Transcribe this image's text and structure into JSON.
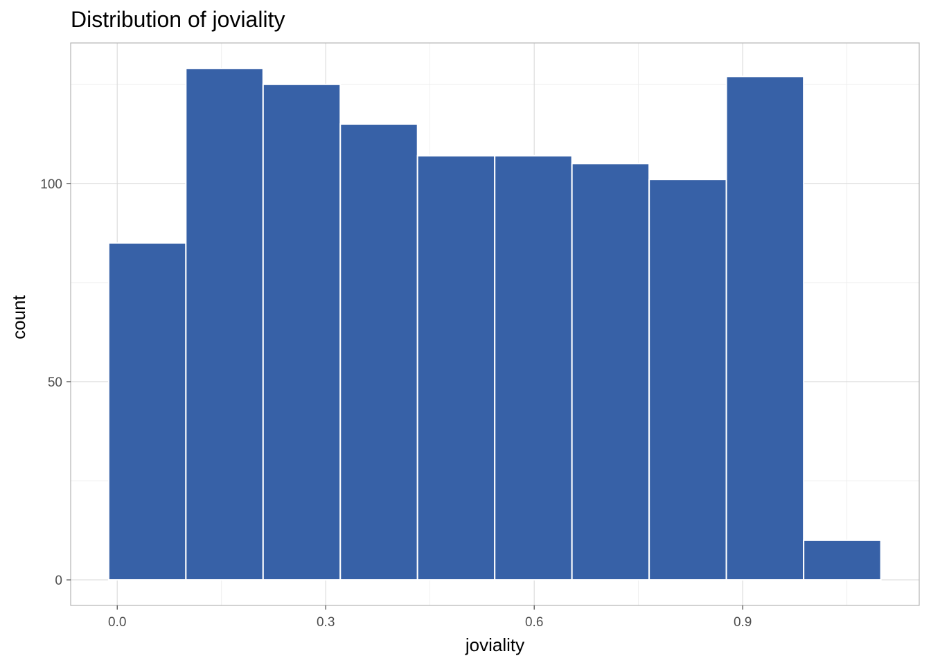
{
  "chart_data": {
    "type": "bar",
    "title": "Distribution of joviality",
    "xlabel": "joviality",
    "ylabel": "count",
    "bar_color": "#3761a7",
    "bins": [
      {
        "x0": -0.0123,
        "x1": 0.0988,
        "count": 85
      },
      {
        "x0": 0.0988,
        "x1": 0.2099,
        "count": 129
      },
      {
        "x0": 0.2099,
        "x1": 0.321,
        "count": 125
      },
      {
        "x0": 0.321,
        "x1": 0.4321,
        "count": 115
      },
      {
        "x0": 0.4321,
        "x1": 0.5432,
        "count": 107
      },
      {
        "x0": 0.5432,
        "x1": 0.6543,
        "count": 107
      },
      {
        "x0": 0.6543,
        "x1": 0.7654,
        "count": 105
      },
      {
        "x0": 0.7654,
        "x1": 0.8765,
        "count": 101
      },
      {
        "x0": 0.8765,
        "x1": 0.9877,
        "count": 127
      },
      {
        "x0": 0.9877,
        "x1": 1.0988,
        "count": 10
      }
    ],
    "xlim": [
      -0.067,
      1.154
    ],
    "ylim": [
      -6.45,
      135.45
    ],
    "x_ticks": [
      0.0,
      0.3,
      0.6,
      0.9
    ],
    "x_tick_labels": [
      "0.0",
      "0.3",
      "0.6",
      "0.9"
    ],
    "x_minor_ticks": [
      0.15,
      0.45,
      0.75,
      1.05
    ],
    "y_ticks": [
      0,
      50,
      100
    ],
    "y_tick_labels": [
      "0",
      "50",
      "100"
    ],
    "y_minor_ticks": [
      25,
      75,
      125
    ],
    "grid": true,
    "legend": "none"
  }
}
